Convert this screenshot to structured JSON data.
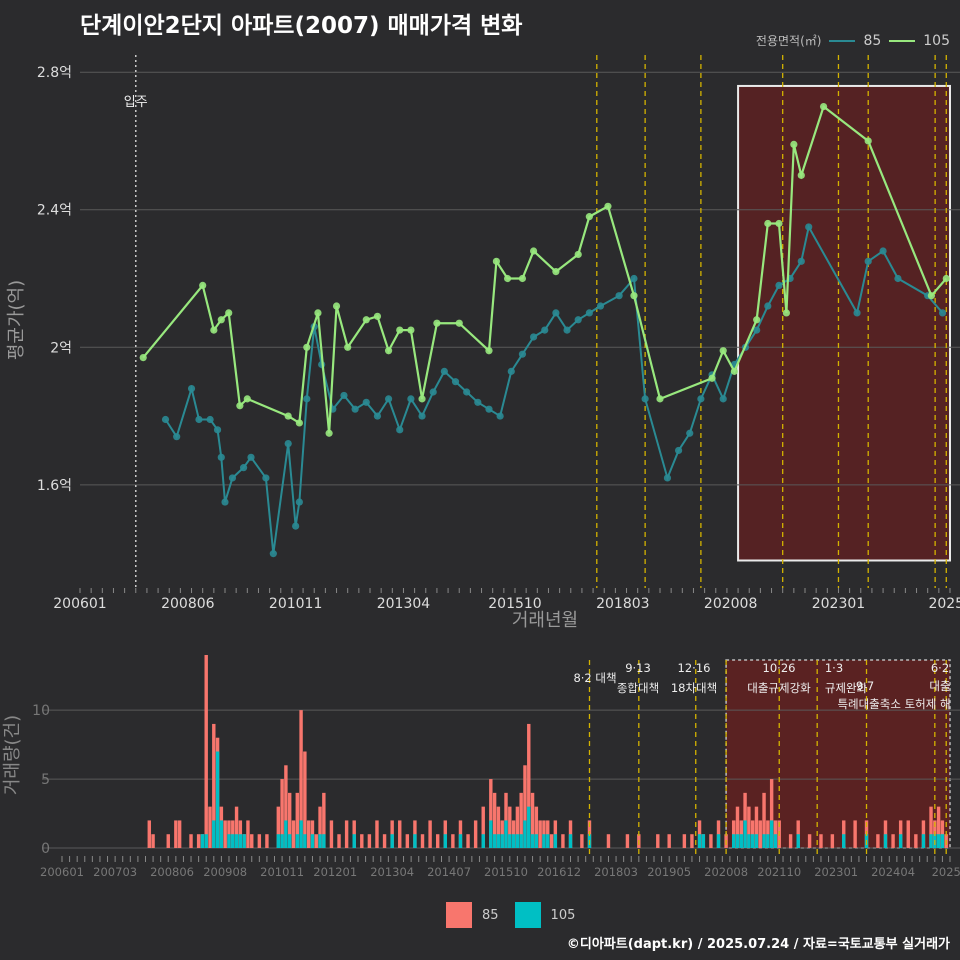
{
  "title": "단계이안2단지 아파트(2007) 매매가격 변화",
  "footer": "©디아파트(dapt.kr) / 2025.07.24 / 자료=국토교통부 실거래가",
  "legend_top": {
    "title": "전용면적(㎡)",
    "items": [
      {
        "label": "85",
        "color": "#2a8a93"
      },
      {
        "label": "105",
        "color": "#98e87e"
      }
    ]
  },
  "legend_bottom": {
    "items": [
      {
        "label": "85",
        "color": "#f8766d"
      },
      {
        "label": "105",
        "color": "#00bfc4"
      }
    ]
  },
  "colors": {
    "background": "#2b2b2d",
    "grid": "#5a5a5a",
    "policy_line": "#d4b300",
    "highlight_fill": "#5a2222",
    "highlight_border": "#ffffff"
  },
  "movein_label": "입주",
  "policies_top": [
    "8·2 대책",
    "9·13 종합대책",
    "12·16 18차대책",
    "10·26 대출규제강화",
    "1·3 규제완화",
    "9·7 특례대출축소 토허제 해"
  ],
  "chart_data": [
    {
      "type": "line",
      "xlabel": "거래년월",
      "ylabel": "평균가(억)",
      "x_ticks": [
        "200601",
        "200806",
        "201011",
        "201304",
        "201510",
        "201803",
        "202008",
        "202301",
        "2025"
      ],
      "y_ticks": [
        "1.6억",
        "2억",
        "2.4억",
        "2.8억"
      ],
      "ylim": [
        1.3,
        2.85
      ],
      "series": [
        {
          "name": "85",
          "color": "#2a8a93",
          "points": [
            [
              "2007-12",
              1.79
            ],
            [
              "2008-03",
              1.74
            ],
            [
              "2008-07",
              1.88
            ],
            [
              "2008-09",
              1.79
            ],
            [
              "2008-12",
              1.79
            ],
            [
              "2009-02",
              1.76
            ],
            [
              "2009-03",
              1.68
            ],
            [
              "2009-04",
              1.55
            ],
            [
              "2009-06",
              1.62
            ],
            [
              "2009-09",
              1.65
            ],
            [
              "2009-11",
              1.68
            ],
            [
              "2010-03",
              1.62
            ],
            [
              "2010-05",
              1.4
            ],
            [
              "2010-09",
              1.72
            ],
            [
              "2010-11",
              1.48
            ],
            [
              "2010-12",
              1.55
            ],
            [
              "2011-02",
              1.85
            ],
            [
              "2011-04",
              2.06
            ],
            [
              "2011-06",
              1.95
            ],
            [
              "2011-09",
              1.82
            ],
            [
              "2011-12",
              1.86
            ],
            [
              "2012-03",
              1.82
            ],
            [
              "2012-06",
              1.84
            ],
            [
              "2012-09",
              1.8
            ],
            [
              "2012-12",
              1.85
            ],
            [
              "2013-03",
              1.76
            ],
            [
              "2013-06",
              1.85
            ],
            [
              "2013-09",
              1.8
            ],
            [
              "2013-12",
              1.87
            ],
            [
              "2014-03",
              1.93
            ],
            [
              "2014-06",
              1.9
            ],
            [
              "2014-09",
              1.87
            ],
            [
              "2014-12",
              1.84
            ],
            [
              "2015-03",
              1.82
            ],
            [
              "2015-06",
              1.8
            ],
            [
              "2015-09",
              1.93
            ],
            [
              "2015-12",
              1.98
            ],
            [
              "2016-03",
              2.03
            ],
            [
              "2016-06",
              2.05
            ],
            [
              "2016-09",
              2.1
            ],
            [
              "2016-12",
              2.05
            ],
            [
              "2017-03",
              2.08
            ],
            [
              "2017-06",
              2.1
            ],
            [
              "2017-09",
              2.12
            ],
            [
              "2018-02",
              2.15
            ],
            [
              "2018-06",
              2.2
            ],
            [
              "2018-09",
              1.85
            ],
            [
              "2019-03",
              1.62
            ],
            [
              "2019-06",
              1.7
            ],
            [
              "2019-09",
              1.75
            ],
            [
              "2019-12",
              1.85
            ],
            [
              "2020-03",
              1.92
            ],
            [
              "2020-06",
              1.85
            ],
            [
              "2020-09",
              1.95
            ],
            [
              "2020-12",
              2.0
            ],
            [
              "2021-03",
              2.05
            ],
            [
              "2021-06",
              2.12
            ],
            [
              "2021-09",
              2.18
            ],
            [
              "2021-12",
              2.2
            ],
            [
              "2022-03",
              2.25
            ],
            [
              "2022-05",
              2.35
            ],
            [
              "2023-06",
              2.1
            ],
            [
              "2023-09",
              2.25
            ],
            [
              "2024-01",
              2.28
            ],
            [
              "2024-05",
              2.2
            ],
            [
              "2025-01",
              2.15
            ],
            [
              "2025-05",
              2.1
            ]
          ]
        },
        {
          "name": "105",
          "color": "#98e87e",
          "points": [
            [
              "2007-06",
              1.97
            ],
            [
              "2008-10",
              2.18
            ],
            [
              "2009-01",
              2.05
            ],
            [
              "2009-03",
              2.08
            ],
            [
              "2009-05",
              2.1
            ],
            [
              "2009-08",
              1.83
            ],
            [
              "2009-10",
              1.85
            ],
            [
              "2010-09",
              1.8
            ],
            [
              "2010-12",
              1.78
            ],
            [
              "2011-02",
              2.0
            ],
            [
              "2011-05",
              2.1
            ],
            [
              "2011-08",
              1.75
            ],
            [
              "2011-10",
              2.12
            ],
            [
              "2012-01",
              2.0
            ],
            [
              "2012-06",
              2.08
            ],
            [
              "2012-09",
              2.09
            ],
            [
              "2012-12",
              1.99
            ],
            [
              "2013-03",
              2.05
            ],
            [
              "2013-06",
              2.05
            ],
            [
              "2013-09",
              1.85
            ],
            [
              "2014-01",
              2.07
            ],
            [
              "2014-07",
              2.07
            ],
            [
              "2015-03",
              1.99
            ],
            [
              "2015-05",
              2.25
            ],
            [
              "2015-08",
              2.2
            ],
            [
              "2015-12",
              2.2
            ],
            [
              "2016-03",
              2.28
            ],
            [
              "2016-09",
              2.22
            ],
            [
              "2017-03",
              2.27
            ],
            [
              "2017-06",
              2.38
            ],
            [
              "2017-11",
              2.41
            ],
            [
              "2018-06",
              2.15
            ],
            [
              "2019-01",
              1.85
            ],
            [
              "2020-03",
              1.91
            ],
            [
              "2020-06",
              1.99
            ],
            [
              "2020-09",
              1.93
            ],
            [
              "2021-03",
              2.08
            ],
            [
              "2021-06",
              2.36
            ],
            [
              "2021-09",
              2.36
            ],
            [
              "2021-11",
              2.1
            ],
            [
              "2022-01",
              2.59
            ],
            [
              "2022-03",
              2.5
            ],
            [
              "2022-09",
              2.7
            ],
            [
              "2023-09",
              2.6
            ],
            [
              "2025-02",
              2.15
            ],
            [
              "2025-06",
              2.2
            ]
          ]
        }
      ]
    },
    {
      "type": "bar",
      "xlabel": "",
      "ylabel": "거래량(건)",
      "x_ticks": [
        "200601",
        "200703",
        "200806",
        "200908",
        "201011",
        "201201",
        "201304",
        "201407",
        "201510",
        "201612",
        "201803",
        "201905",
        "202008",
        "202110",
        "202301",
        "202404",
        "2025"
      ],
      "y_ticks": [
        "0",
        "5",
        "10"
      ],
      "ylim": [
        0,
        14
      ],
      "stacked": true,
      "series": [
        {
          "name": "85",
          "color": "#f8766d"
        },
        {
          "name": "105",
          "color": "#00bfc4"
        }
      ],
      "months": [
        [
          "2007-12",
          2,
          0
        ],
        [
          "2008-01",
          1,
          0
        ],
        [
          "2008-05",
          1,
          0
        ],
        [
          "2008-07",
          2,
          0
        ],
        [
          "2008-08",
          2,
          0
        ],
        [
          "2008-11",
          1,
          0
        ],
        [
          "2009-01",
          1,
          0
        ],
        [
          "2009-02",
          1,
          1
        ],
        [
          "2009-03",
          14,
          1
        ],
        [
          "2009-04",
          3,
          0
        ],
        [
          "2009-05",
          9,
          2
        ],
        [
          "2009-06",
          8,
          7
        ],
        [
          "2009-07",
          3,
          2
        ],
        [
          "2009-08",
          2,
          0
        ],
        [
          "2009-09",
          2,
          1
        ],
        [
          "2009-10",
          2,
          1
        ],
        [
          "2009-11",
          3,
          1
        ],
        [
          "2009-12",
          2,
          1
        ],
        [
          "2010-01",
          1,
          1
        ],
        [
          "2010-02",
          2,
          0
        ],
        [
          "2010-03",
          1,
          0
        ],
        [
          "2010-05",
          1,
          0
        ],
        [
          "2010-07",
          1,
          0
        ],
        [
          "2010-10",
          3,
          1
        ],
        [
          "2010-11",
          5,
          1
        ],
        [
          "2010-12",
          6,
          2
        ],
        [
          "2011-01",
          4,
          1
        ],
        [
          "2011-02",
          2,
          0
        ],
        [
          "2011-03",
          4,
          1
        ],
        [
          "2011-04",
          10,
          2
        ],
        [
          "2011-05",
          7,
          1
        ],
        [
          "2011-06",
          2,
          0
        ],
        [
          "2011-07",
          2,
          1
        ],
        [
          "2011-08",
          1,
          0
        ],
        [
          "2011-09",
          3,
          1
        ],
        [
          "2011-10",
          4,
          1
        ],
        [
          "2011-12",
          2,
          0
        ],
        [
          "2012-02",
          1,
          0
        ],
        [
          "2012-04",
          2,
          0
        ],
        [
          "2012-06",
          2,
          1
        ],
        [
          "2012-08",
          1,
          0
        ],
        [
          "2012-10",
          1,
          0
        ],
        [
          "2012-12",
          2,
          0
        ],
        [
          "2013-02",
          1,
          0
        ],
        [
          "2013-04",
          2,
          1
        ],
        [
          "2013-06",
          2,
          0
        ],
        [
          "2013-08",
          1,
          0
        ],
        [
          "2013-10",
          2,
          1
        ],
        [
          "2013-12",
          1,
          0
        ],
        [
          "2014-02",
          2,
          0
        ],
        [
          "2014-04",
          1,
          0
        ],
        [
          "2014-06",
          2,
          1
        ],
        [
          "2014-08",
          1,
          0
        ],
        [
          "2014-10",
          2,
          1
        ],
        [
          "2014-12",
          1,
          0
        ],
        [
          "2015-02",
          2,
          0
        ],
        [
          "2015-04",
          3,
          1
        ],
        [
          "2015-06",
          5,
          2
        ],
        [
          "2015-07",
          4,
          1
        ],
        [
          "2015-08",
          3,
          1
        ],
        [
          "2015-09",
          2,
          1
        ],
        [
          "2015-10",
          4,
          2
        ],
        [
          "2015-11",
          3,
          1
        ],
        [
          "2015-12",
          2,
          1
        ],
        [
          "2016-01",
          3,
          1
        ],
        [
          "2016-02",
          4,
          1
        ],
        [
          "2016-03",
          6,
          2
        ],
        [
          "2016-04",
          9,
          3
        ],
        [
          "2016-05",
          4,
          1
        ],
        [
          "2016-06",
          3,
          1
        ],
        [
          "2016-07",
          2,
          0
        ],
        [
          "2016-08",
          2,
          1
        ],
        [
          "2016-09",
          2,
          1
        ],
        [
          "2016-10",
          1,
          0
        ],
        [
          "2016-11",
          2,
          1
        ],
        [
          "2017-01",
          1,
          0
        ],
        [
          "2017-03",
          2,
          1
        ],
        [
          "2017-06",
          1,
          0
        ],
        [
          "2017-08",
          2,
          1
        ],
        [
          "2018-01",
          1,
          0
        ],
        [
          "2018-06",
          1,
          0
        ],
        [
          "2018-09",
          1,
          0
        ],
        [
          "2019-02",
          1,
          0
        ],
        [
          "2019-05",
          1,
          0
        ],
        [
          "2019-09",
          1,
          0
        ],
        [
          "2019-11",
          1,
          0
        ],
        [
          "2020-01",
          2,
          1
        ],
        [
          "2020-02",
          1,
          1
        ],
        [
          "2020-04",
          1,
          0
        ],
        [
          "2020-06",
          2,
          1
        ],
        [
          "2020-08",
          1,
          0
        ],
        [
          "2020-10",
          2,
          1
        ],
        [
          "2020-11",
          3,
          1
        ],
        [
          "2020-12",
          2,
          1
        ],
        [
          "2021-01",
          4,
          2
        ],
        [
          "2021-02",
          3,
          1
        ],
        [
          "2021-03",
          2,
          1
        ],
        [
          "2021-04",
          3,
          1
        ],
        [
          "2021-05",
          2,
          0
        ],
        [
          "2021-06",
          4,
          1
        ],
        [
          "2021-07",
          2,
          1
        ],
        [
          "2021-08",
          5,
          2
        ],
        [
          "2021-09",
          2,
          1
        ],
        [
          "2021-10",
          2,
          0
        ],
        [
          "2022-01",
          1,
          0
        ],
        [
          "2022-03",
          2,
          1
        ],
        [
          "2022-06",
          1,
          0
        ],
        [
          "2022-09",
          1,
          0
        ],
        [
          "2022-12",
          1,
          0
        ],
        [
          "2023-03",
          2,
          1
        ],
        [
          "2023-06",
          2,
          0
        ],
        [
          "2023-09",
          2,
          1
        ],
        [
          "2023-12",
          1,
          0
        ],
        [
          "2024-02",
          2,
          1
        ],
        [
          "2024-04",
          1,
          0
        ],
        [
          "2024-06",
          2,
          1
        ],
        [
          "2024-08",
          2,
          0
        ],
        [
          "2024-10",
          1,
          0
        ],
        [
          "2024-12",
          2,
          1
        ],
        [
          "2025-02",
          3,
          1
        ],
        [
          "2025-03",
          2,
          1
        ],
        [
          "2025-04",
          3,
          1
        ],
        [
          "2025-05",
          2,
          1
        ],
        [
          "2025-06",
          1,
          0
        ]
      ]
    }
  ]
}
